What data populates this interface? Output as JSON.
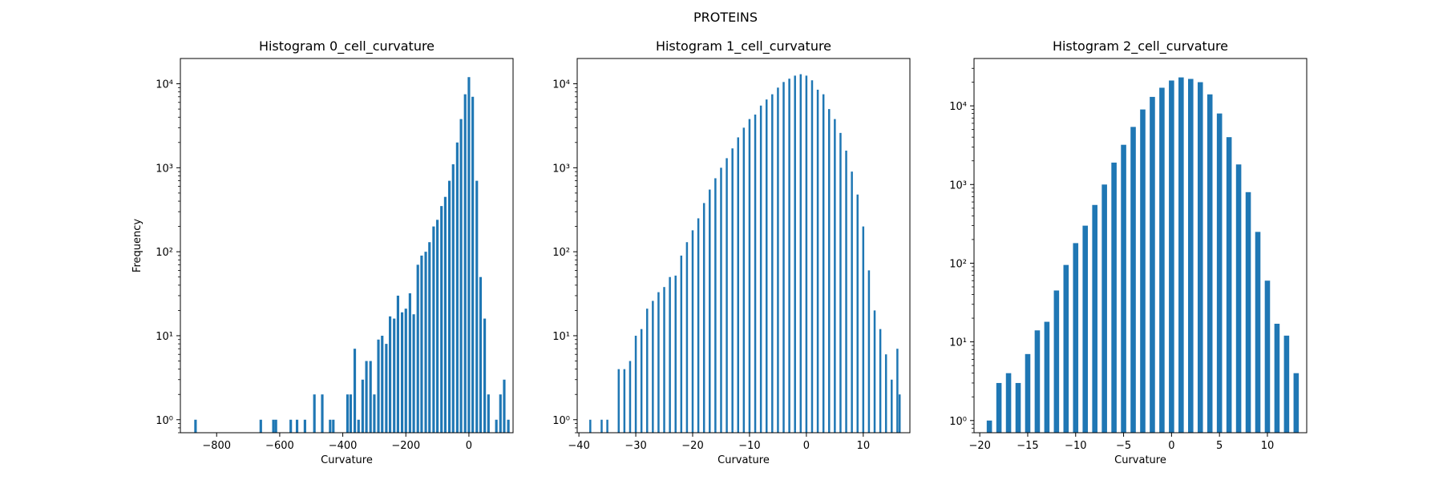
{
  "figure": {
    "title": "PROTEINS"
  },
  "colors": {
    "bar": "#1f77b4",
    "axis": "#000000",
    "background": "#ffffff"
  },
  "chart_data": [
    {
      "type": "bar",
      "title": "Histogram 0_cell_curvature",
      "xlabel": "Curvature",
      "ylabel": "Frequency",
      "yscale": "log",
      "xlim": [
        -915,
        140
      ],
      "ylim": [
        0.7,
        20000
      ],
      "xticks": [
        -800,
        -600,
        -400,
        -200,
        0
      ],
      "xtick_labels": [
        "−800",
        "−600",
        "−400",
        "−200",
        "0"
      ],
      "yticks": [
        1,
        10,
        100,
        1000,
        10000
      ],
      "ytick_labels": [
        "10⁰",
        "10¹",
        "10²",
        "10³",
        "10⁴"
      ],
      "grid": false,
      "bins": [
        {
          "x": -867,
          "y": 1
        },
        {
          "x": -660,
          "y": 1
        },
        {
          "x": -620,
          "y": 1
        },
        {
          "x": -612,
          "y": 1
        },
        {
          "x": -565,
          "y": 1
        },
        {
          "x": -545,
          "y": 1
        },
        {
          "x": -520,
          "y": 1
        },
        {
          "x": -490,
          "y": 2
        },
        {
          "x": -465,
          "y": 2
        },
        {
          "x": -440,
          "y": 1
        },
        {
          "x": -430,
          "y": 1
        },
        {
          "x": -385,
          "y": 2
        },
        {
          "x": -375,
          "y": 2
        },
        {
          "x": -362,
          "y": 7
        },
        {
          "x": -350,
          "y": 1
        },
        {
          "x": -337,
          "y": 3
        },
        {
          "x": -325,
          "y": 5
        },
        {
          "x": -312,
          "y": 5
        },
        {
          "x": -300,
          "y": 2
        },
        {
          "x": -287,
          "y": 9
        },
        {
          "x": -275,
          "y": 10
        },
        {
          "x": -262,
          "y": 8
        },
        {
          "x": -250,
          "y": 17
        },
        {
          "x": -237,
          "y": 16
        },
        {
          "x": -225,
          "y": 30
        },
        {
          "x": -212,
          "y": 19
        },
        {
          "x": -200,
          "y": 21
        },
        {
          "x": -187,
          "y": 32
        },
        {
          "x": -175,
          "y": 18
        },
        {
          "x": -162,
          "y": 70
        },
        {
          "x": -150,
          "y": 90
        },
        {
          "x": -137,
          "y": 100
        },
        {
          "x": -125,
          "y": 130
        },
        {
          "x": -112,
          "y": 200
        },
        {
          "x": -100,
          "y": 240
        },
        {
          "x": -87,
          "y": 350
        },
        {
          "x": -75,
          "y": 450
        },
        {
          "x": -62,
          "y": 700
        },
        {
          "x": -50,
          "y": 1100
        },
        {
          "x": -37,
          "y": 2000
        },
        {
          "x": -25,
          "y": 3800
        },
        {
          "x": -12,
          "y": 7500
        },
        {
          "x": 0,
          "y": 12000
        },
        {
          "x": 12,
          "y": 7000
        },
        {
          "x": 25,
          "y": 700
        },
        {
          "x": 37,
          "y": 50
        },
        {
          "x": 50,
          "y": 16
        },
        {
          "x": 62,
          "y": 2
        },
        {
          "x": 87,
          "y": 1
        },
        {
          "x": 100,
          "y": 2
        },
        {
          "x": 112,
          "y": 3
        },
        {
          "x": 125,
          "y": 1
        }
      ]
    },
    {
      "type": "bar",
      "title": "Histogram 1_cell_curvature",
      "xlabel": "Curvature",
      "ylabel": "",
      "yscale": "log",
      "xlim": [
        -40.3,
        18.2
      ],
      "ylim": [
        0.7,
        20000
      ],
      "xticks": [
        -40,
        -30,
        -20,
        -10,
        0,
        10
      ],
      "xtick_labels": [
        "−40",
        "−30",
        "−20",
        "−10",
        "0",
        "10"
      ],
      "yticks": [
        1,
        10,
        100,
        1000,
        10000
      ],
      "ytick_labels": [
        "10⁰",
        "10¹",
        "10²",
        "10³",
        "10⁴"
      ],
      "grid": false,
      "bins": [
        {
          "x": -38,
          "y": 1
        },
        {
          "x": -36,
          "y": 1
        },
        {
          "x": -35,
          "y": 1
        },
        {
          "x": -33,
          "y": 4
        },
        {
          "x": -32,
          "y": 4
        },
        {
          "x": -31,
          "y": 5
        },
        {
          "x": -30,
          "y": 10
        },
        {
          "x": -29,
          "y": 12
        },
        {
          "x": -28,
          "y": 21
        },
        {
          "x": -27,
          "y": 26
        },
        {
          "x": -26,
          "y": 33
        },
        {
          "x": -25,
          "y": 38
        },
        {
          "x": -24,
          "y": 50
        },
        {
          "x": -23,
          "y": 52
        },
        {
          "x": -22,
          "y": 90
        },
        {
          "x": -21,
          "y": 130
        },
        {
          "x": -20,
          "y": 180
        },
        {
          "x": -19,
          "y": 250
        },
        {
          "x": -18,
          "y": 380
        },
        {
          "x": -17,
          "y": 550
        },
        {
          "x": -16,
          "y": 750
        },
        {
          "x": -15,
          "y": 1000
        },
        {
          "x": -14,
          "y": 1300
        },
        {
          "x": -13,
          "y": 1700
        },
        {
          "x": -12,
          "y": 2300
        },
        {
          "x": -11,
          "y": 3000
        },
        {
          "x": -10,
          "y": 3800
        },
        {
          "x": -9,
          "y": 4300
        },
        {
          "x": -8,
          "y": 5500
        },
        {
          "x": -7,
          "y": 6500
        },
        {
          "x": -6,
          "y": 7500
        },
        {
          "x": -5,
          "y": 9000
        },
        {
          "x": -4,
          "y": 10500
        },
        {
          "x": -3,
          "y": 11500
        },
        {
          "x": -2,
          "y": 12500
        },
        {
          "x": -1,
          "y": 13000
        },
        {
          "x": 0,
          "y": 12500
        },
        {
          "x": 1,
          "y": 11000
        },
        {
          "x": 2,
          "y": 8500
        },
        {
          "x": 3,
          "y": 7500
        },
        {
          "x": 4,
          "y": 5000
        },
        {
          "x": 5,
          "y": 3800
        },
        {
          "x": 6,
          "y": 2600
        },
        {
          "x": 7,
          "y": 1600
        },
        {
          "x": 8,
          "y": 900
        },
        {
          "x": 9,
          "y": 480
        },
        {
          "x": 10,
          "y": 200
        },
        {
          "x": 11,
          "y": 60
        },
        {
          "x": 12,
          "y": 20
        },
        {
          "x": 13,
          "y": 12
        },
        {
          "x": 14,
          "y": 6
        },
        {
          "x": 15,
          "y": 3
        },
        {
          "x": 16,
          "y": 7
        },
        {
          "x": 16.4,
          "y": 2
        }
      ]
    },
    {
      "type": "bar",
      "title": "Histogram 2_cell_curvature",
      "xlabel": "Curvature",
      "ylabel": "",
      "yscale": "log",
      "xlim": [
        -20.6,
        14.1
      ],
      "ylim": [
        0.7,
        40000
      ],
      "xticks": [
        -20,
        -15,
        -10,
        -5,
        0,
        5,
        10
      ],
      "xtick_labels": [
        "−20",
        "−15",
        "−10",
        "−5",
        "0",
        "5",
        "10"
      ],
      "yticks": [
        1,
        10,
        100,
        1000,
        10000
      ],
      "ytick_labels": [
        "10⁰",
        "10¹",
        "10²",
        "10³",
        "10⁴"
      ],
      "grid": false,
      "bins": [
        {
          "x": -19,
          "y": 1
        },
        {
          "x": -18,
          "y": 3
        },
        {
          "x": -17,
          "y": 4
        },
        {
          "x": -16,
          "y": 3
        },
        {
          "x": -15,
          "y": 7
        },
        {
          "x": -14,
          "y": 14
        },
        {
          "x": -13,
          "y": 18
        },
        {
          "x": -12,
          "y": 45
        },
        {
          "x": -11,
          "y": 95
        },
        {
          "x": -10,
          "y": 180
        },
        {
          "x": -9,
          "y": 300
        },
        {
          "x": -8,
          "y": 550
        },
        {
          "x": -7,
          "y": 1000
        },
        {
          "x": -6,
          "y": 1900
        },
        {
          "x": -5,
          "y": 3200
        },
        {
          "x": -4,
          "y": 5400
        },
        {
          "x": -3,
          "y": 9000
        },
        {
          "x": -2,
          "y": 13000
        },
        {
          "x": -1,
          "y": 17000
        },
        {
          "x": 0,
          "y": 21000
        },
        {
          "x": 1,
          "y": 23000
        },
        {
          "x": 2,
          "y": 22000
        },
        {
          "x": 3,
          "y": 20000
        },
        {
          "x": 4,
          "y": 14000
        },
        {
          "x": 5,
          "y": 8000
        },
        {
          "x": 6,
          "y": 4000
        },
        {
          "x": 7,
          "y": 1800
        },
        {
          "x": 8,
          "y": 800
        },
        {
          "x": 9,
          "y": 250
        },
        {
          "x": 10,
          "y": 60
        },
        {
          "x": 11,
          "y": 17
        },
        {
          "x": 12,
          "y": 12
        },
        {
          "x": 13,
          "y": 4
        }
      ]
    }
  ]
}
